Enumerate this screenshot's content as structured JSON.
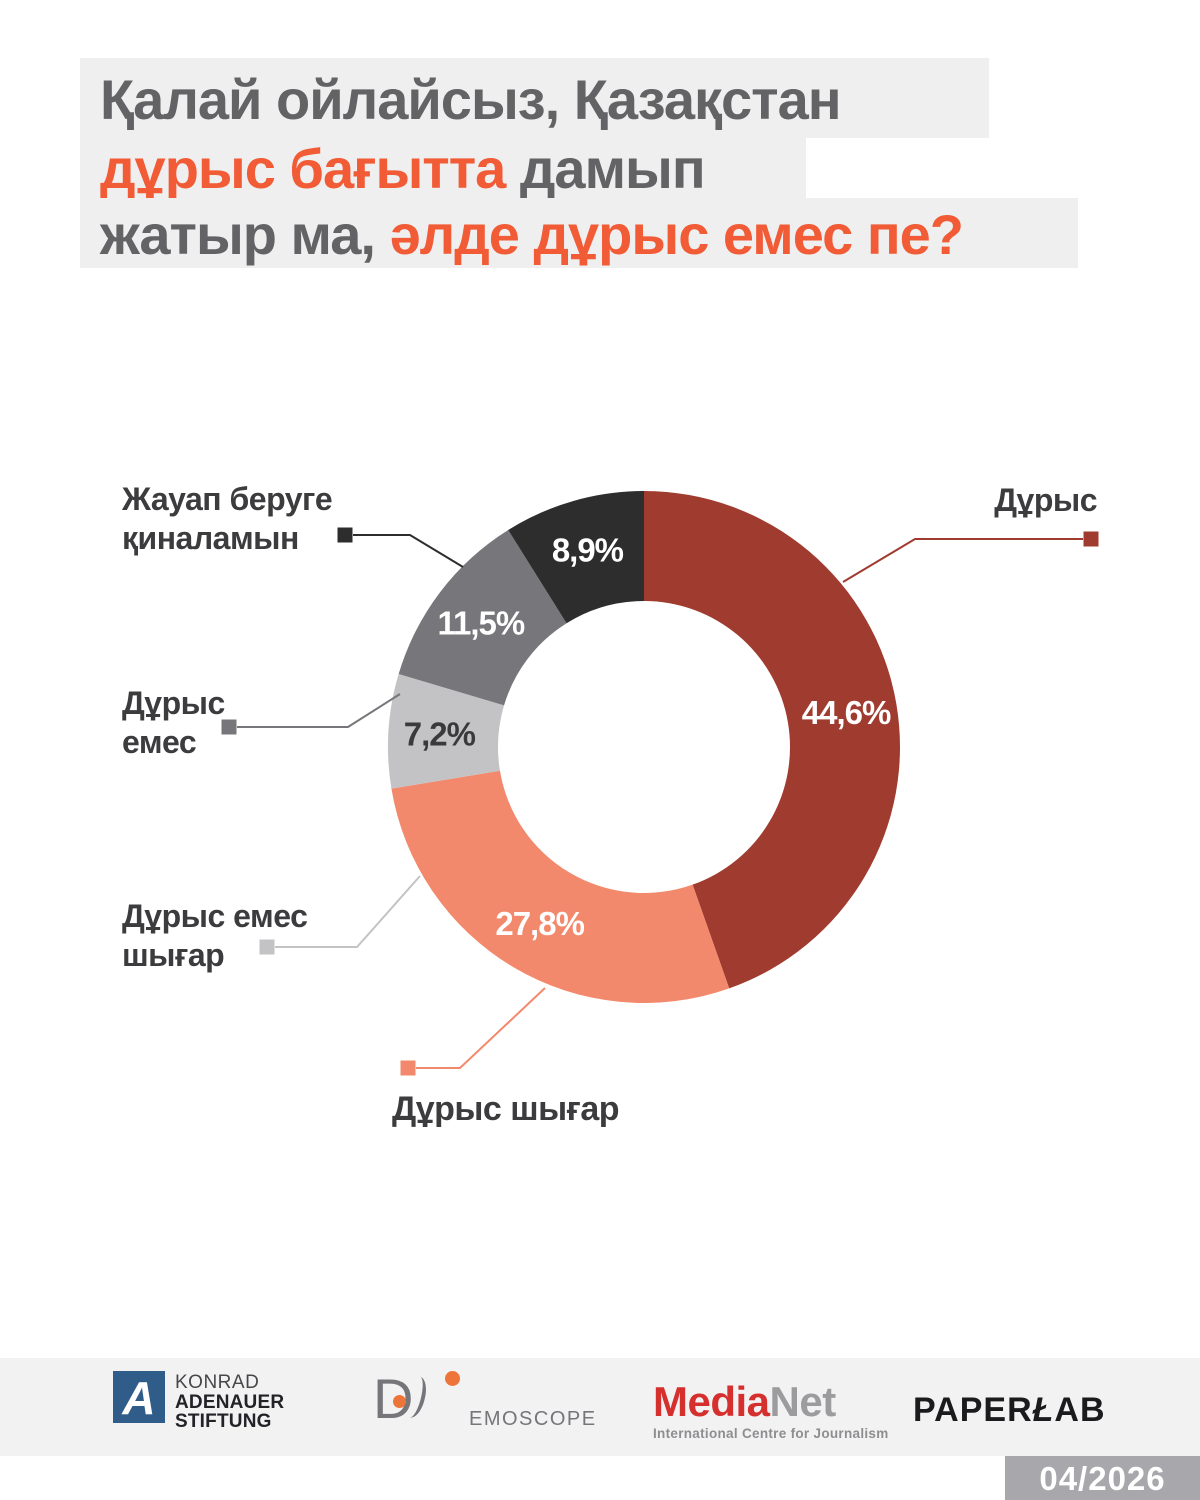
{
  "title": {
    "full_question": "Қалай ойлайсыз, Қазақстан дұрыс бағытта дамып жатыр ма, әлде дұрыс емес пе?",
    "line1_gray": "Қалай ойлайсыз, Қазақстан",
    "line2_orange": "дұрыс бағытта",
    "line2_gray": " дамып",
    "line3_gray": "жатыр ма, ",
    "line3_orange": "әлде дұрыс емес пе?"
  },
  "chart_data": {
    "type": "pie",
    "subtype": "donut",
    "title": "Қалай ойлайсыз, Қазақстан дұрыс бағытта дамып жатыр ма, әлде дұрыс емес пе?",
    "unit": "%",
    "decimal_separator": ",",
    "start_angle_deg": 0,
    "direction": "clockwise",
    "donut_hole_ratio": 0.57,
    "legend_position": "callouts-around-donut",
    "segments": [
      {
        "label": "Дұрыс",
        "value": 44.6,
        "value_display": "44,6%",
        "color": "#A03B2F",
        "value_label_color": "#FFFFFF",
        "callout_lines": [
          "Дұрыс"
        ]
      },
      {
        "label": "Дұрыс шығар",
        "value": 27.8,
        "value_display": "27,8%",
        "color": "#F3896C",
        "value_label_color": "#FFFFFF",
        "callout_lines": [
          "Дұрыс шығар"
        ]
      },
      {
        "label": "Дұрыс емес шығар",
        "value": 7.2,
        "value_display": "7,2%",
        "color": "#C3C3C5",
        "value_label_color": "#3A3A3C",
        "callout_lines": [
          "Дұрыс емес",
          "шығар"
        ]
      },
      {
        "label": "Дұрыс емес",
        "value": 11.5,
        "value_display": "11,5%",
        "color": "#77777B",
        "value_label_color": "#FFFFFF",
        "callout_lines": [
          "Дұрыс",
          "емес"
        ]
      },
      {
        "label": "Жауап беруге қиналамын",
        "value": 8.9,
        "value_display": "8,9%",
        "color": "#2D2D2E",
        "value_label_color": "#FFFFFF",
        "callout_lines": [
          "Жауап беруге",
          "қиналамын"
        ]
      }
    ]
  },
  "footer": {
    "logos": {
      "kas": {
        "mark": "A",
        "lines": [
          "KONRAD",
          "ADENAUER",
          "STIFTUNG"
        ]
      },
      "demoscope": {
        "d_letter": "D",
        "wordmark": "EMOSCOPE"
      },
      "medianet": {
        "part_red": "Media",
        "part_gray": "Net",
        "subtitle": "International Centre for Journalism"
      },
      "paperlab": {
        "part1": "PAPER",
        "stylized_letter": "Ł",
        "part2": "AB"
      }
    },
    "date_badge": "04/2026"
  },
  "colors": {
    "page_bg": "#FFFFFF",
    "title_highlight": "#EFEFEF",
    "title_gray": "#636366",
    "title_orange": "#F15B36",
    "callout_text": "#3C3C3E",
    "footer_band": "#F2F2F3",
    "badge_bg": "#A8A8AC",
    "badge_text": "#FFFFFF",
    "kas_blue": "#2F5C88",
    "kas_text": "#232327",
    "kas_text_light": "#47474A",
    "demoscope_gray": "#75757A",
    "demoscope_orange": "#EE7539",
    "medianet_red": "#D5302E",
    "medianet_gray": "#9C9C9E",
    "medianet_sub": "#8E8E90",
    "paperlab_black": "#1B1B1D"
  }
}
